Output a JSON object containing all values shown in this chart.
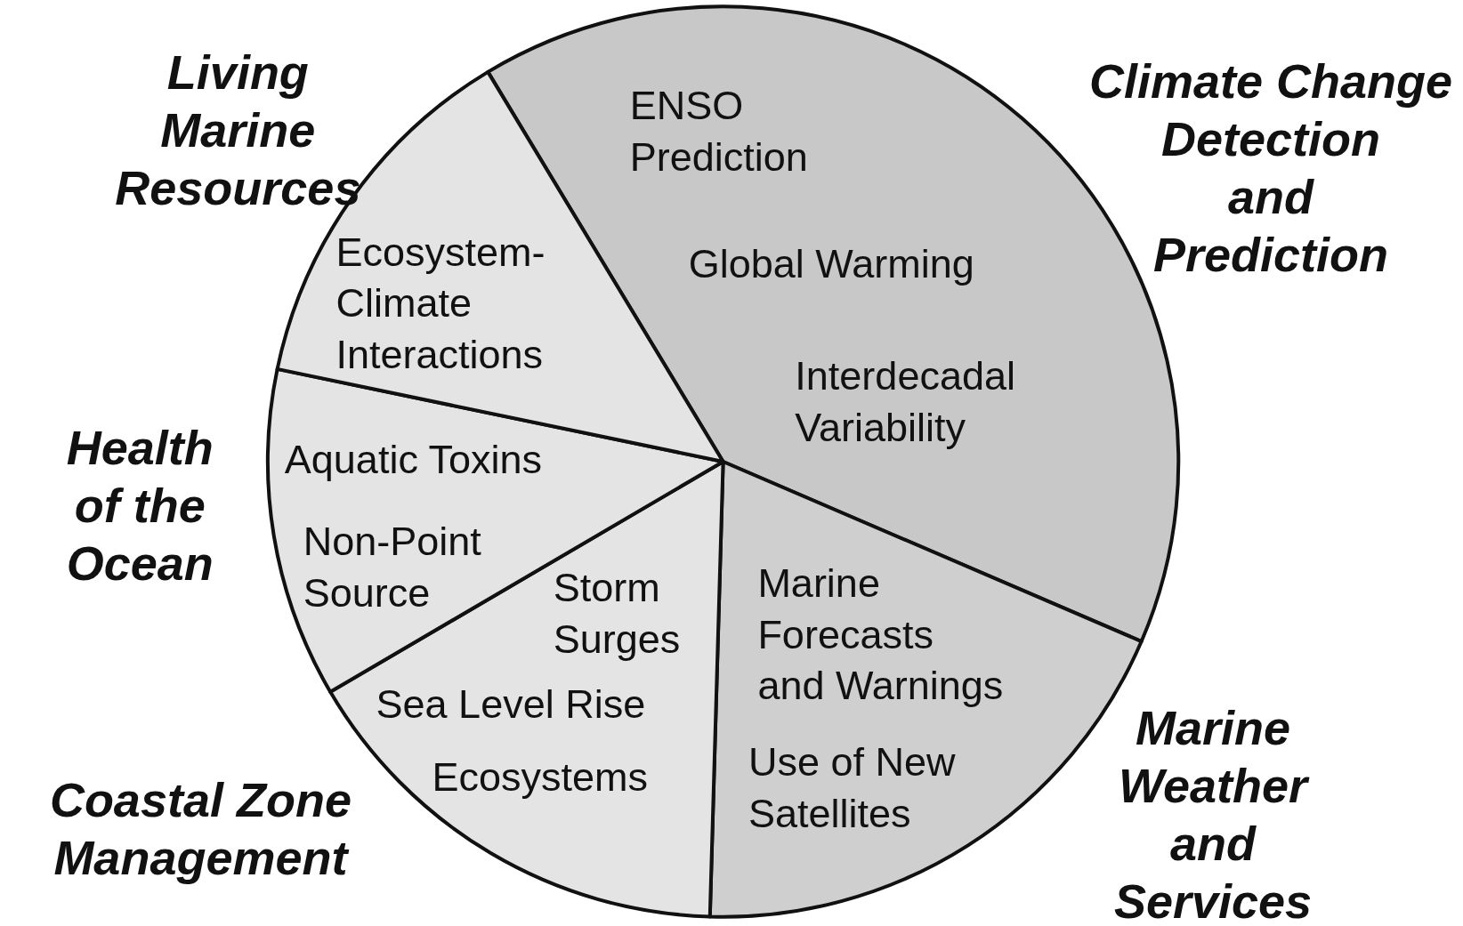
{
  "chart_data": {
    "type": "pie",
    "categories": [
      "Climate Change Detection and Prediction",
      "Marine Weather and Services",
      "Coastal Zone Management",
      "Health of the Ocean",
      "Living Marine Resources"
    ],
    "values": [
      40.1,
      19.0,
      16.1,
      11.7,
      13.1
    ],
    "colors": [
      "#c8c8c8",
      "#cfcfcf",
      "#e4e4e4",
      "#e4e4e4",
      "#e4e4e4"
    ],
    "annotations": [
      "ENSO Prediction",
      "Global Warming",
      "Interdecadal Variability",
      "Marine Forecasts and Warnings",
      "Use of New Satellites",
      "Storm Surges",
      "Sea Level Rise",
      "Ecosystems",
      "Aquatic Toxins",
      "Non-Point Source",
      "Ecosystem-Climate Interactions"
    ]
  }
}
